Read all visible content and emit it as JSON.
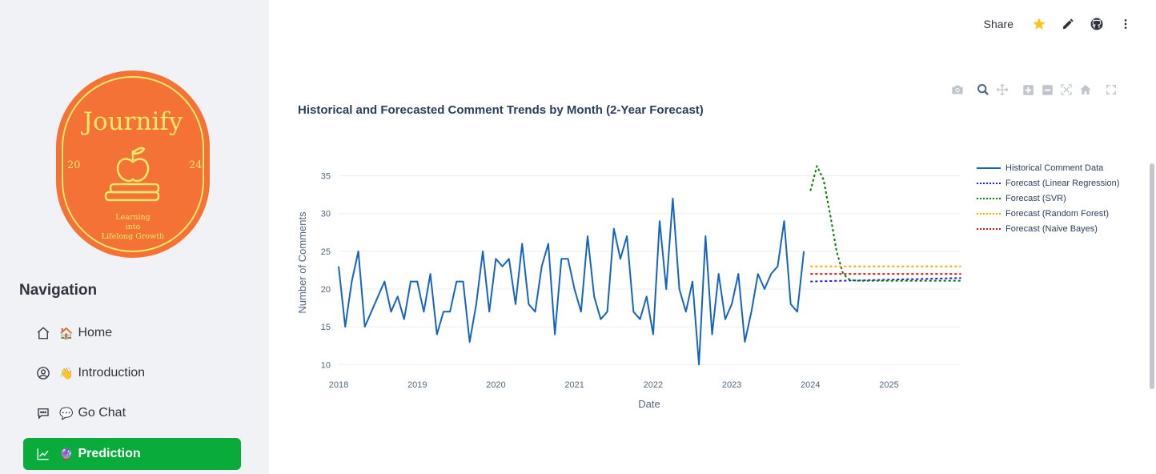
{
  "header": {
    "share_label": "Share"
  },
  "logo": {
    "name": "Journify",
    "year_left": "20",
    "year_right": "24",
    "tagline": [
      "Learning",
      "into",
      "Lifelong Growth"
    ]
  },
  "sidebar": {
    "nav_title": "Navigation",
    "items": [
      {
        "emoji": "🏠",
        "label": "Home",
        "icon": "house-icon",
        "active": false
      },
      {
        "emoji": "👋",
        "label": "Introduction",
        "icon": "user-circle-icon",
        "active": false
      },
      {
        "emoji": "💬",
        "label": "Go Chat",
        "icon": "chat-icon",
        "active": false
      },
      {
        "emoji": "🔮",
        "label": "Prediction",
        "icon": "trend-chart-icon",
        "active": true
      }
    ]
  },
  "colors": {
    "active": "#09ab3b",
    "historical": "#1565c0",
    "linear": "#1a1aff",
    "svr": "#007700",
    "rf": "#ffa500",
    "nb": "#ee1111"
  },
  "chart_data": {
    "type": "line",
    "title": "Historical and Forecasted Comment Trends by Month (2-Year Forecast)",
    "xlabel": "Date",
    "ylabel": "Number of Comments",
    "x_ticks": [
      "2018",
      "2019",
      "2020",
      "2021",
      "2022",
      "2023",
      "2024",
      "2025"
    ],
    "y_ticks": [
      10,
      15,
      20,
      25,
      30,
      35
    ],
    "xlim": [
      "2018-01",
      "2025-12"
    ],
    "ylim": [
      9.5,
      37.5
    ],
    "grid": true,
    "legend_position": "right",
    "series": [
      {
        "name": "Historical Comment Data",
        "style": "solid",
        "color": "#1565c0",
        "start": "2018-01",
        "values": [
          23,
          15,
          21,
          25,
          15,
          17,
          19,
          21,
          17,
          19,
          16,
          21,
          21,
          17,
          22,
          14,
          17,
          17,
          21,
          21,
          13,
          18,
          25,
          17,
          24,
          23,
          24,
          18,
          26,
          18,
          17,
          23,
          26,
          14,
          24,
          24,
          20,
          17,
          27,
          19,
          16,
          17,
          28,
          24,
          27,
          17,
          16,
          19,
          14,
          29,
          20,
          32,
          20,
          17,
          21,
          10,
          27,
          14,
          22,
          16,
          18,
          22,
          13,
          17,
          22,
          20,
          22,
          23,
          29,
          18,
          17,
          25
        ]
      },
      {
        "name": "Forecast (Linear Regression)",
        "style": "dashed",
        "color": "#1a1aff",
        "start": "2024-01",
        "values": [
          21.0,
          21.02,
          21.04,
          21.06,
          21.08,
          21.1,
          21.12,
          21.14,
          21.16,
          21.18,
          21.2,
          21.22,
          21.24,
          21.26,
          21.28,
          21.3,
          21.32,
          21.34,
          21.36,
          21.38,
          21.4,
          21.42,
          21.44,
          21.46
        ]
      },
      {
        "name": "Forecast (SVR)",
        "style": "dashed",
        "color": "#007700",
        "start": "2024-01",
        "values": [
          33,
          36.3,
          34.5,
          30,
          25,
          22,
          21.2,
          21.1,
          21.1,
          21.1,
          21.1,
          21.1,
          21.1,
          21.1,
          21.1,
          21.1,
          21.1,
          21.1,
          21.1,
          21.1,
          21.1,
          21.1,
          21.1,
          21.1
        ]
      },
      {
        "name": "Forecast (Random Forest)",
        "style": "dashed",
        "color": "#ffa500",
        "start": "2024-01",
        "values": [
          23,
          23,
          23,
          23,
          23,
          23,
          23,
          23,
          23,
          23,
          23,
          23,
          23,
          23,
          23,
          23,
          23,
          23,
          23,
          23,
          23,
          23,
          23,
          23
        ]
      },
      {
        "name": "Forecast (Naive Bayes)",
        "style": "dashed",
        "color": "#ee1111",
        "start": "2024-01",
        "values": [
          22,
          22,
          22,
          22,
          22,
          22,
          22,
          22,
          22,
          22,
          22,
          22,
          22,
          22,
          22,
          22,
          22,
          22,
          22,
          22,
          22,
          22,
          22,
          22
        ]
      }
    ]
  }
}
